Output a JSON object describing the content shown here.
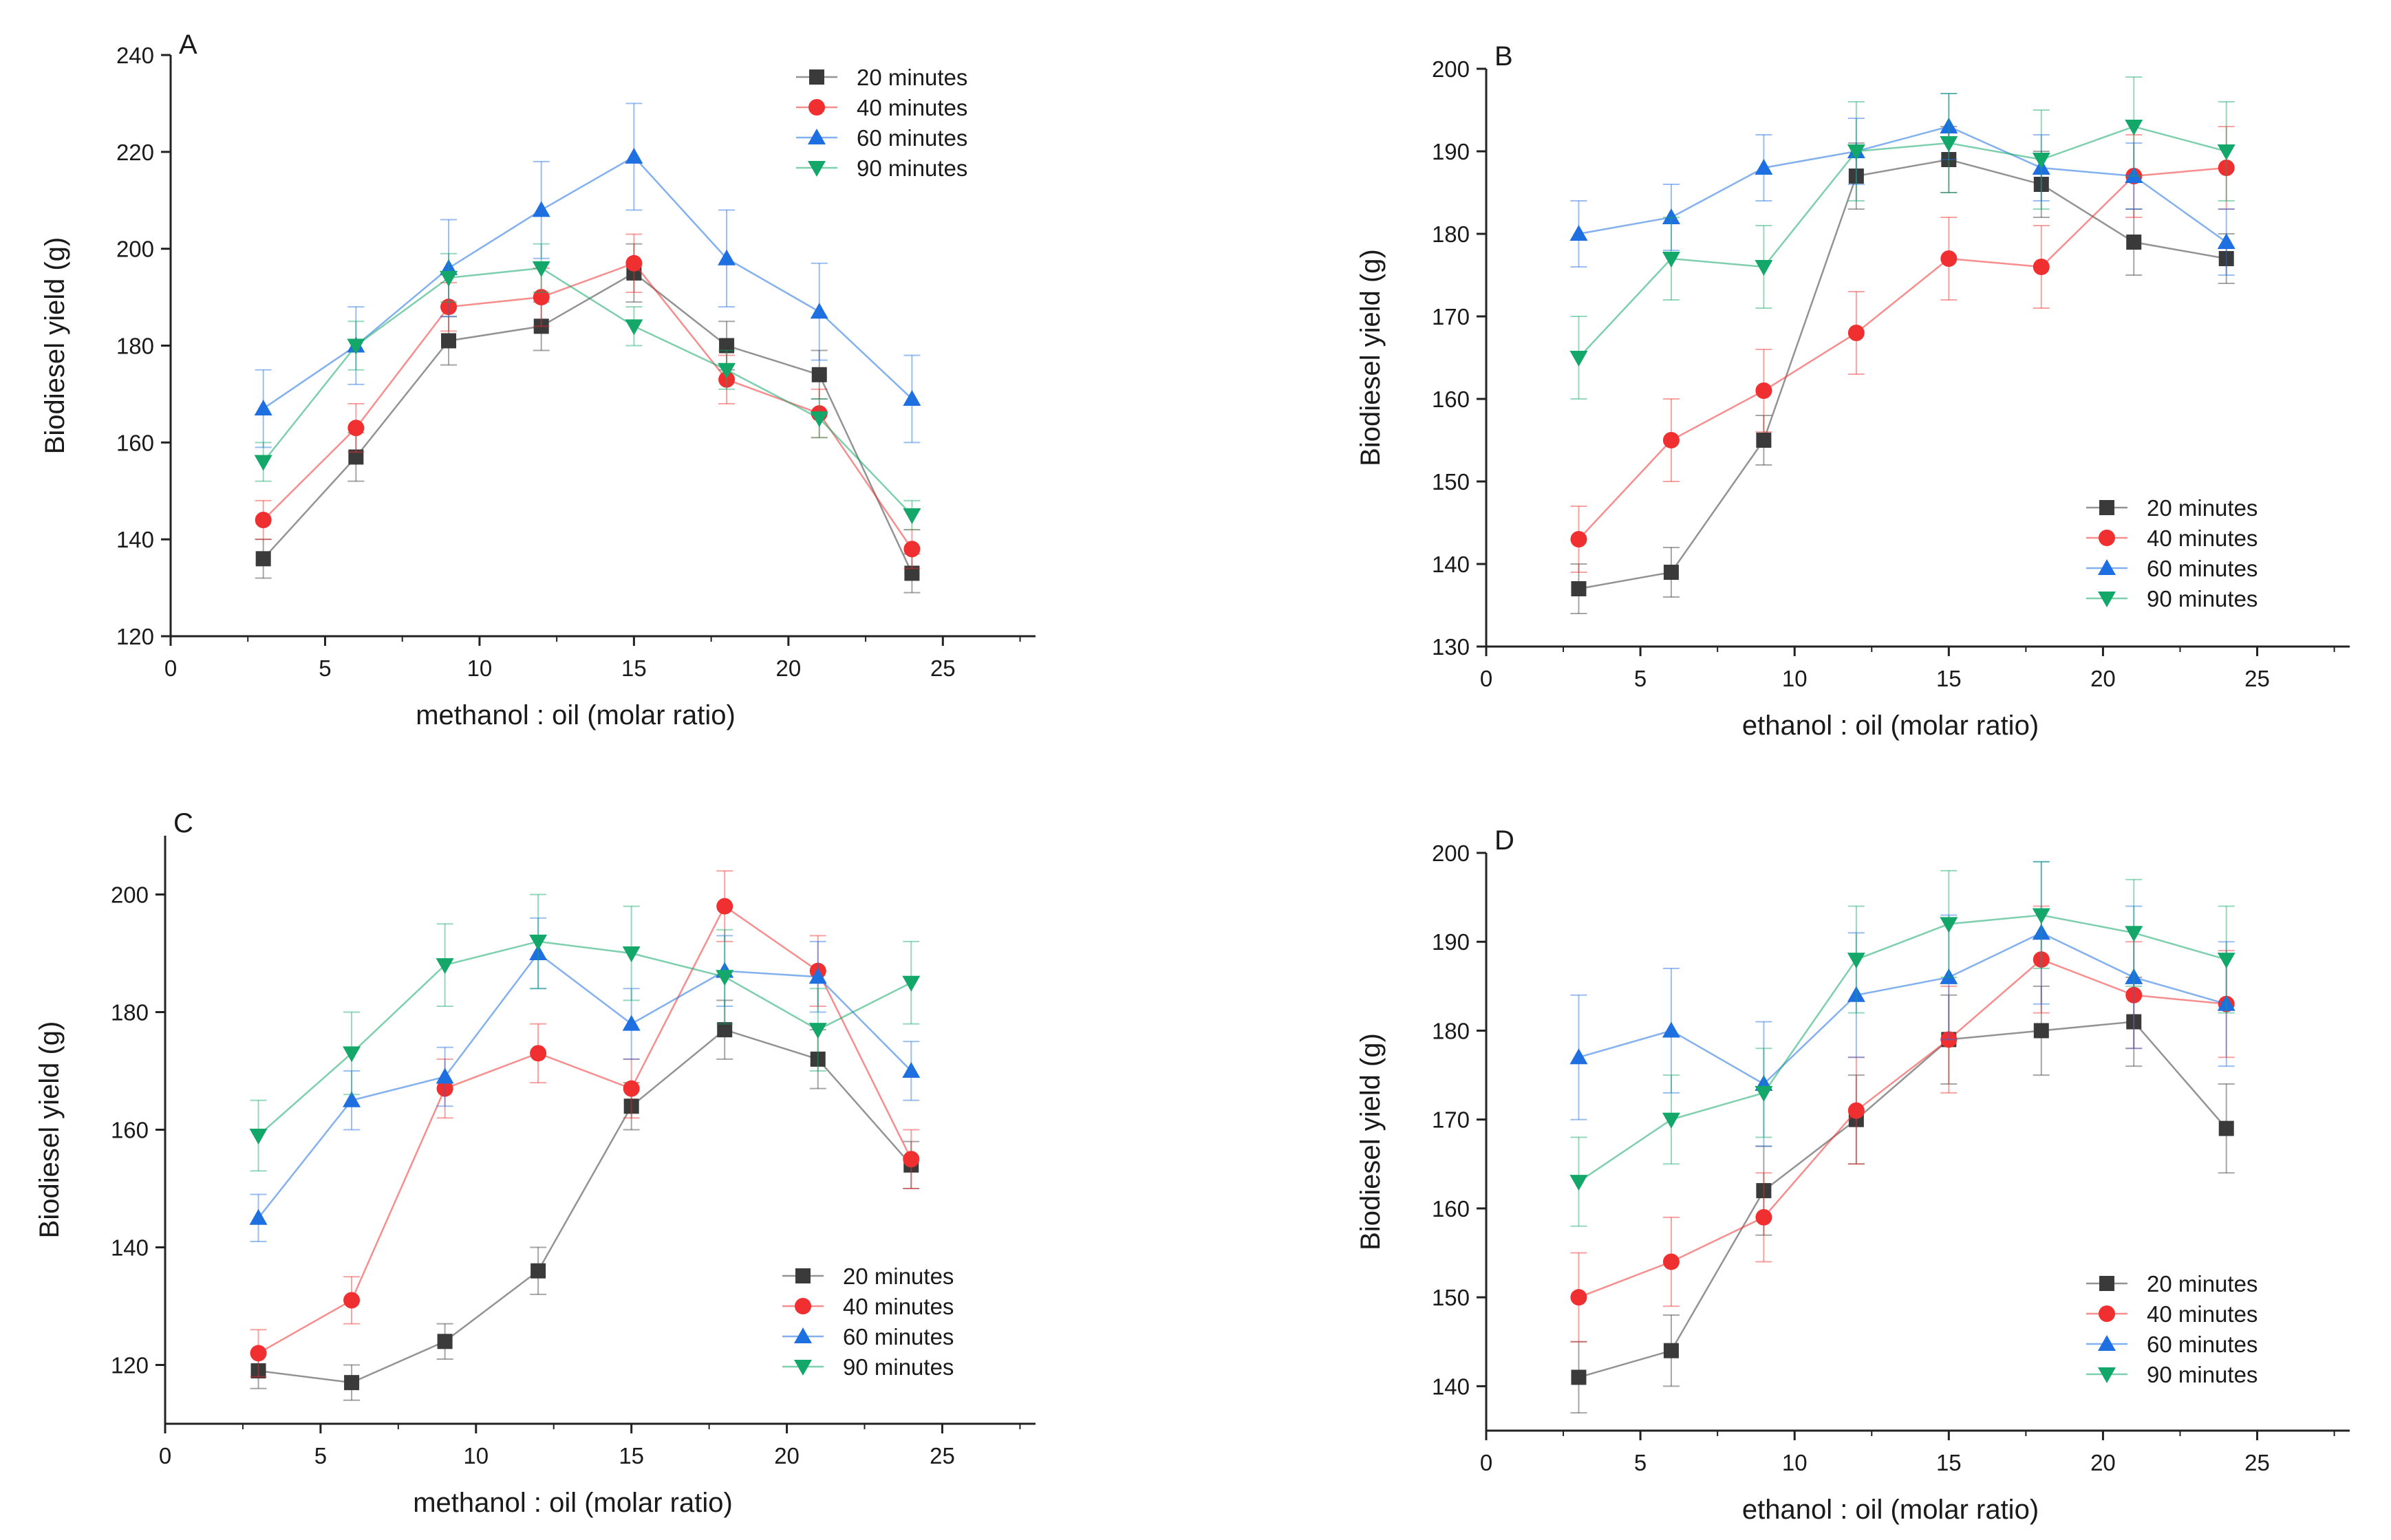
{
  "colors": {
    "20 minutes": "#3a3a3a",
    "40 minutes": "#f03030",
    "60 minutes": "#1e6fe0",
    "90 minutes": "#13a86a",
    "axis": "#222222"
  },
  "chart_data": [
    {
      "type": "line",
      "panel_label": "A",
      "xlabel": "methanol : oil (molar ratio)",
      "ylabel": "Biodiesel yield (g)",
      "xlim": [
        0,
        28
      ],
      "ylim": [
        120,
        240
      ],
      "xticks": [
        0,
        5,
        10,
        15,
        20,
        25
      ],
      "yticks": [
        120,
        140,
        160,
        180,
        200,
        220,
        240
      ],
      "legend_position": "top-right",
      "x": [
        3,
        6,
        9,
        12,
        15,
        18,
        21,
        24
      ],
      "series": [
        {
          "name": "20 minutes",
          "marker": "square",
          "values": [
            136,
            157,
            181,
            184,
            195,
            180,
            174,
            133
          ],
          "errors": [
            4,
            5,
            5,
            5,
            6,
            5,
            5,
            4
          ]
        },
        {
          "name": "40 minutes",
          "marker": "circle",
          "values": [
            144,
            163,
            188,
            190,
            197,
            173,
            166,
            138
          ],
          "errors": [
            4,
            5,
            5,
            6,
            6,
            5,
            5,
            4
          ]
        },
        {
          "name": "60 minutes",
          "marker": "triangle-up",
          "values": [
            167,
            180,
            196,
            208,
            219,
            198,
            187,
            169
          ],
          "errors": [
            8,
            8,
            10,
            10,
            11,
            10,
            10,
            9
          ]
        },
        {
          "name": "90 minutes",
          "marker": "triangle-down",
          "values": [
            156,
            180,
            194,
            196,
            184,
            175,
            165,
            145
          ],
          "errors": [
            4,
            5,
            5,
            5,
            4,
            4,
            4,
            3
          ]
        }
      ]
    },
    {
      "type": "line",
      "panel_label": "B",
      "xlabel": "ethanol : oil (molar ratio)",
      "ylabel": "Biodiesel yield (g)",
      "xlim": [
        0,
        28
      ],
      "ylim": [
        130,
        200
      ],
      "xticks": [
        0,
        5,
        10,
        15,
        20,
        25
      ],
      "yticks": [
        130,
        140,
        150,
        160,
        170,
        180,
        190,
        200
      ],
      "legend_position": "bottom-right",
      "x": [
        3,
        6,
        9,
        12,
        15,
        18,
        21,
        24
      ],
      "series": [
        {
          "name": "20 minutes",
          "marker": "square",
          "values": [
            137,
            139,
            155,
            187,
            189,
            186,
            179,
            177
          ],
          "errors": [
            3,
            3,
            3,
            4,
            4,
            4,
            4,
            3
          ]
        },
        {
          "name": "40 minutes",
          "marker": "circle",
          "values": [
            143,
            155,
            161,
            168,
            177,
            176,
            187,
            188
          ],
          "errors": [
            4,
            5,
            5,
            5,
            5,
            5,
            5,
            5
          ]
        },
        {
          "name": "60 minutes",
          "marker": "triangle-up",
          "values": [
            180,
            182,
            188,
            190,
            193,
            188,
            187,
            179
          ],
          "errors": [
            4,
            4,
            4,
            4,
            4,
            4,
            4,
            4
          ]
        },
        {
          "name": "90 minutes",
          "marker": "triangle-down",
          "values": [
            165,
            177,
            176,
            190,
            191,
            189,
            193,
            190
          ],
          "errors": [
            5,
            5,
            5,
            6,
            6,
            6,
            6,
            6
          ]
        }
      ]
    },
    {
      "type": "line",
      "panel_label": "C",
      "xlabel": "methanol : oil (molar ratio)",
      "ylabel": "Biodiesel yield (g)",
      "xlim": [
        0,
        28
      ],
      "ylim": [
        110,
        210
      ],
      "xticks": [
        0,
        5,
        10,
        15,
        20,
        25
      ],
      "yticks": [
        120,
        140,
        160,
        180,
        200
      ],
      "legend_position": "bottom-right",
      "x": [
        3,
        6,
        9,
        12,
        15,
        18,
        21,
        24
      ],
      "series": [
        {
          "name": "20 minutes",
          "marker": "square",
          "values": [
            119,
            117,
            124,
            136,
            164,
            177,
            172,
            154
          ],
          "errors": [
            3,
            3,
            3,
            4,
            4,
            5,
            5,
            4
          ]
        },
        {
          "name": "40 minutes",
          "marker": "circle",
          "values": [
            122,
            131,
            167,
            173,
            167,
            198,
            187,
            155
          ],
          "errors": [
            4,
            4,
            5,
            5,
            5,
            6,
            6,
            5
          ]
        },
        {
          "name": "60 minutes",
          "marker": "triangle-up",
          "values": [
            145,
            165,
            169,
            190,
            178,
            187,
            186,
            170
          ],
          "errors": [
            4,
            5,
            5,
            6,
            6,
            6,
            6,
            5
          ]
        },
        {
          "name": "90 minutes",
          "marker": "triangle-down",
          "values": [
            159,
            173,
            188,
            192,
            190,
            186,
            177,
            185
          ],
          "errors": [
            6,
            7,
            7,
            8,
            8,
            8,
            7,
            7
          ]
        }
      ]
    },
    {
      "type": "line",
      "panel_label": "D",
      "xlabel": "ethanol : oil (molar ratio)",
      "ylabel": "Biodiesel yield (g)",
      "xlim": [
        0,
        28
      ],
      "ylim": [
        135,
        200
      ],
      "xticks": [
        0,
        5,
        10,
        15,
        20,
        25
      ],
      "yticks": [
        140,
        150,
        160,
        170,
        180,
        190,
        200
      ],
      "legend_position": "bottom-right",
      "x": [
        3,
        6,
        9,
        12,
        15,
        18,
        21,
        24
      ],
      "series": [
        {
          "name": "20 minutes",
          "marker": "square",
          "values": [
            141,
            144,
            162,
            170,
            179,
            180,
            181,
            169
          ],
          "errors": [
            4,
            4,
            5,
            5,
            5,
            5,
            5,
            5
          ]
        },
        {
          "name": "40 minutes",
          "marker": "circle",
          "values": [
            150,
            154,
            159,
            171,
            179,
            188,
            184,
            183
          ],
          "errors": [
            5,
            5,
            5,
            6,
            6,
            6,
            6,
            6
          ]
        },
        {
          "name": "60 minutes",
          "marker": "triangle-up",
          "values": [
            177,
            180,
            174,
            184,
            186,
            191,
            186,
            183
          ],
          "errors": [
            7,
            7,
            7,
            7,
            7,
            8,
            8,
            7
          ]
        },
        {
          "name": "90 minutes",
          "marker": "triangle-down",
          "values": [
            163,
            170,
            173,
            188,
            192,
            193,
            191,
            188
          ],
          "errors": [
            5,
            5,
            5,
            6,
            6,
            6,
            6,
            6
          ]
        }
      ]
    }
  ]
}
